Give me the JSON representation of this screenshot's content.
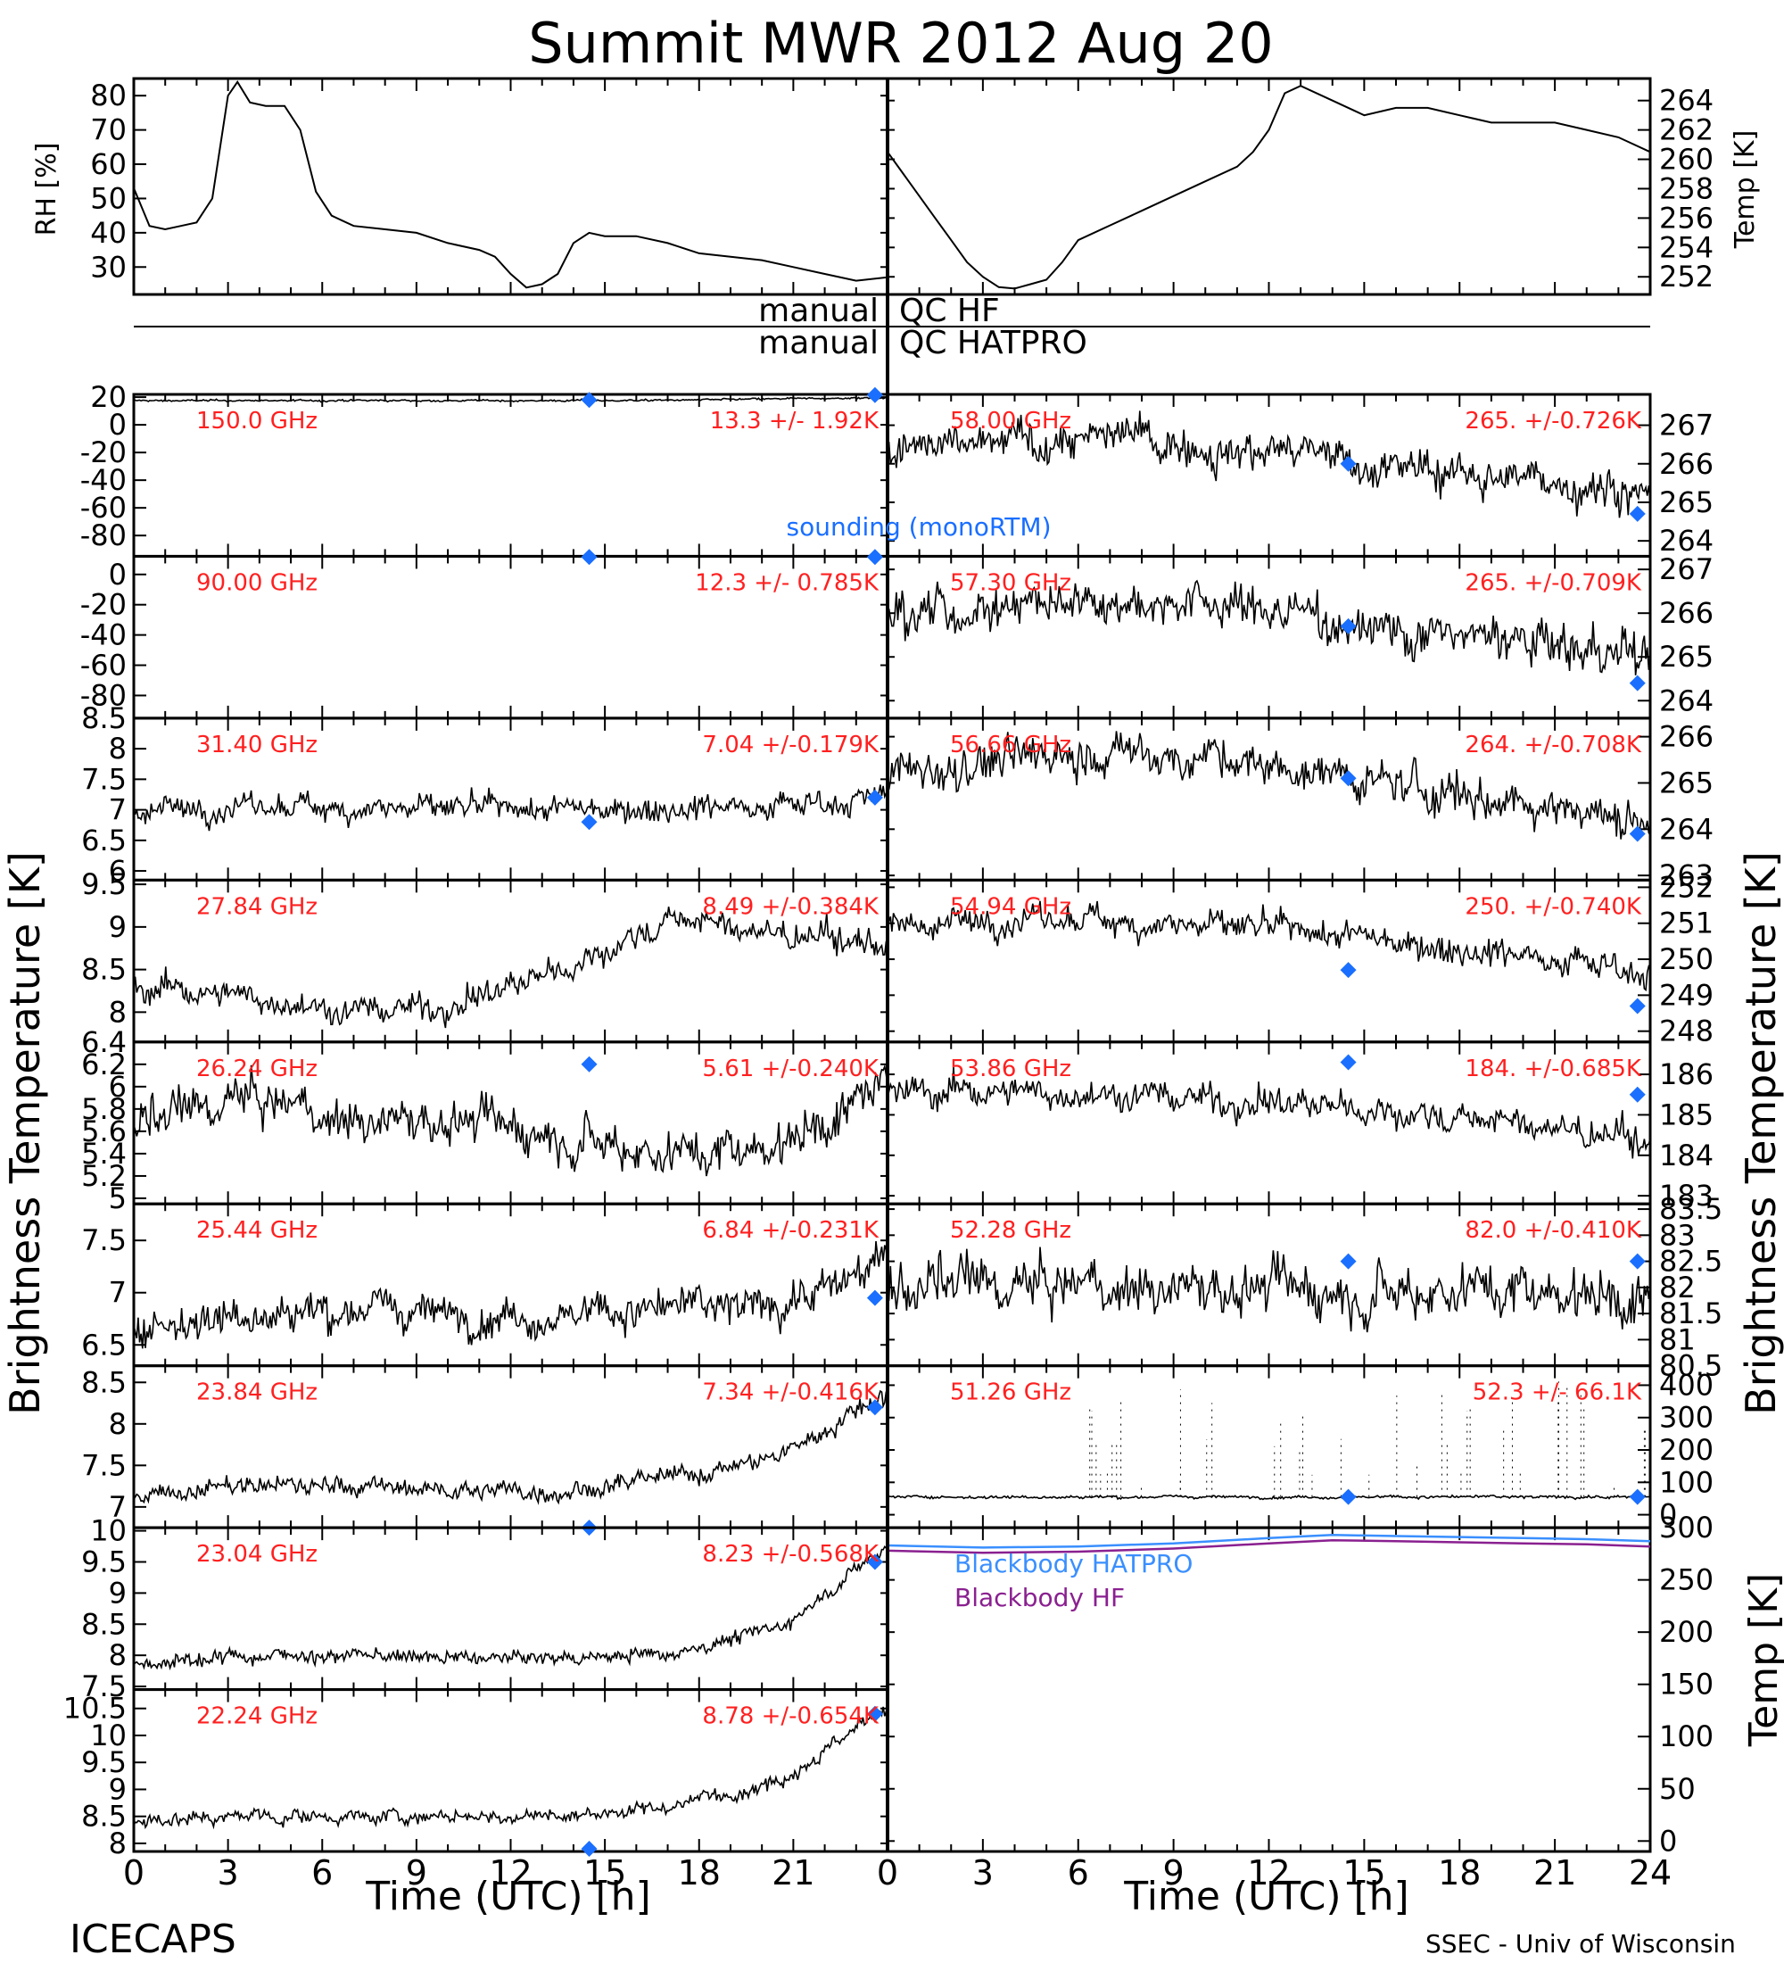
{
  "title": "Summit MWR 2012 Aug 20",
  "footer": {
    "left": "ICECAPS",
    "right": "SSEC - Univ of Wisconsin",
    "xlabel_left": "Time (UTC) [h]",
    "xlabel_right": "Time (UTC) [h]"
  },
  "ylabel_left": "Brightness Temperature [K]",
  "ylabel_right": "Brightness Temperature [K]",
  "qc": {
    "top_left": "manual",
    "top_right": "QC HF",
    "bottom_left": "manual",
    "bottom_right": "QC HATPRO"
  },
  "colors": {
    "sounding": "#1a6fff",
    "stats": "#ff2020",
    "hatpro_bb": "#3a8fff",
    "hf_bb": "#8a2090",
    "trace": "#000000"
  },
  "legend": {
    "sounding": "sounding (monoRTM)",
    "bb_hatpro": "Blackbody HATPRO",
    "bb_hf": "Blackbody HF"
  },
  "chart_data": [
    {
      "type": "line",
      "id": "rh",
      "ylabel": "RH [%]",
      "x_ticks": [
        0,
        3,
        6,
        9,
        12,
        15,
        18,
        21
      ],
      "xlim": [
        0,
        24
      ],
      "ylim": [
        22,
        85
      ],
      "y_ticks": [
        30,
        40,
        50,
        60,
        70,
        80
      ],
      "x": [
        0,
        0.5,
        1,
        1.5,
        2,
        2.5,
        3,
        3.3,
        3.7,
        4.2,
        4.8,
        5.3,
        5.8,
        6.3,
        7,
        8,
        9,
        10,
        11,
        11.5,
        12,
        12.5,
        13,
        13.5,
        14,
        14.5,
        15,
        16,
        17,
        18,
        19,
        20,
        21,
        22,
        23,
        24
      ],
      "y": [
        53,
        42,
        41,
        42,
        43,
        50,
        80,
        84,
        78,
        77,
        77,
        70,
        52,
        45,
        42,
        41,
        40,
        37,
        35,
        33,
        28,
        24,
        25,
        28,
        37,
        40,
        39,
        39,
        37,
        34,
        33,
        32,
        30,
        28,
        26,
        27
      ]
    },
    {
      "type": "line",
      "id": "temp",
      "ylabel": "Temp [K]",
      "xlim": [
        0,
        24
      ],
      "ylim": [
        250.8,
        265.5
      ],
      "y_ticks": [
        252,
        254,
        256,
        258,
        260,
        262,
        264
      ],
      "x": [
        0,
        0.5,
        1,
        1.5,
        2,
        2.5,
        3,
        3.5,
        4,
        4.5,
        5,
        5.5,
        6,
        7,
        8,
        9,
        10,
        11,
        11.5,
        12,
        12.5,
        13,
        14,
        15,
        16,
        17,
        18,
        19,
        20,
        21,
        22,
        23,
        24
      ],
      "y": [
        260.5,
        259,
        257.5,
        256,
        254.5,
        253,
        252,
        251.3,
        251.2,
        251.5,
        251.8,
        253,
        254.5,
        255.5,
        256.5,
        257.5,
        258.5,
        259.5,
        260.5,
        262,
        264.5,
        265,
        264,
        263,
        263.5,
        263.5,
        263,
        262.5,
        262.5,
        262.5,
        262,
        261.5,
        260.5
      ]
    },
    {
      "type": "scatter",
      "id": "l1",
      "freq": "150.0 GHz",
      "stat": "13.3 +/-  1.92K",
      "ylim": [
        -95,
        22
      ],
      "y_ticks": [
        20,
        0,
        -20,
        -40,
        -60,
        -80
      ],
      "base": 17.5,
      "trend": [
        0,
        0,
        0,
        0,
        0,
        0.3,
        1.2,
        2
      ],
      "noise": 0.6,
      "sounding": [
        [
          14.5,
          18
        ],
        [
          23.6,
          21.5
        ]
      ]
    },
    {
      "type": "scatter",
      "id": "l2",
      "freq": "90.00 GHz",
      "stat": "12.3 +/- 0.785K",
      "ylim": [
        -95,
        12
      ],
      "y_ticks": [
        0,
        -20,
        -40,
        -60,
        -80
      ],
      "base": 12,
      "trend": [
        0,
        0,
        0,
        0,
        0,
        0,
        0,
        0
      ],
      "noise": 0.3,
      "sounding": [
        [
          14.5,
          11.5
        ],
        [
          23.6,
          11.5
        ]
      ]
    },
    {
      "type": "scatter",
      "id": "l3",
      "freq": "31.40 GHz",
      "stat": "7.04 +/-0.179K",
      "ylim": [
        5.85,
        8.5
      ],
      "y_ticks": [
        8.5,
        8.0,
        7.5,
        7.0,
        6.5,
        6.0
      ],
      "base": 7.0,
      "trend": [
        0,
        0.05,
        0.05,
        0,
        0,
        0.05,
        0.1,
        0.2
      ],
      "noise": 0.18,
      "sounding": [
        [
          14.5,
          6.8
        ],
        [
          23.6,
          7.2
        ]
      ]
    },
    {
      "type": "scatter",
      "id": "l4",
      "freq": "27.84 GHz",
      "stat": "8.49 +/-0.384K",
      "ylim": [
        7.65,
        9.55
      ],
      "y_ticks": [
        9.5,
        9.0,
        8.5,
        8.0
      ],
      "base": 8.2,
      "trend": [
        0.1,
        0,
        -0.2,
        -0.1,
        0.3,
        0.9,
        0.7,
        0.6
      ],
      "noise": 0.15,
      "sounding": []
    },
    {
      "type": "scatter",
      "id": "l5",
      "freq": "26.24 GHz",
      "stat": "5.61 +/-0.240K",
      "ylim": [
        4.95,
        6.4
      ],
      "y_ticks": [
        6.4,
        6.2,
        6.0,
        5.8,
        5.6,
        5.4,
        5.2,
        5.0
      ],
      "base": 5.6,
      "trend": [
        0,
        0.3,
        0.1,
        0.1,
        0,
        -0.2,
        -0.1,
        0.4
      ],
      "noise": 0.18,
      "sounding": [
        [
          14.5,
          6.2
        ]
      ]
    },
    {
      "type": "scatter",
      "id": "l6",
      "freq": "25.44 GHz",
      "stat": "6.84 +/-0.231K",
      "ylim": [
        6.3,
        7.85
      ],
      "y_ticks": [
        7.5,
        7.0,
        6.5
      ],
      "base": 6.8,
      "trend": [
        -0.1,
        0,
        0.05,
        0,
        0,
        0.05,
        0.1,
        0.5
      ],
      "noise": 0.16,
      "sounding": [
        [
          23.6,
          6.95
        ]
      ]
    },
    {
      "type": "scatter",
      "id": "l7",
      "freq": "23.84 GHz",
      "stat": "7.34 +/-0.416K",
      "ylim": [
        6.75,
        8.7
      ],
      "y_ticks": [
        8.5,
        8.0,
        7.5,
        7.0
      ],
      "base": 7.2,
      "trend": [
        -0.05,
        0.05,
        0.05,
        0,
        0,
        0.15,
        0.4,
        1.2
      ],
      "noise": 0.1,
      "sounding": [
        [
          14.5,
          6.75
        ],
        [
          23.6,
          8.2
        ]
      ]
    },
    {
      "type": "scatter",
      "id": "l8",
      "freq": "23.04 GHz",
      "stat": "8.23 +/-0.568K",
      "ylim": [
        7.45,
        10.05
      ],
      "y_ticks": [
        10.0,
        9.5,
        9.0,
        8.5,
        8.0,
        7.5
      ],
      "base": 7.95,
      "trend": [
        -0.1,
        0.05,
        0.05,
        0,
        0,
        0.1,
        0.5,
        1.8
      ],
      "noise": 0.1,
      "sounding": [
        [
          23.6,
          9.5
        ]
      ]
    },
    {
      "type": "scatter",
      "id": "l9",
      "freq": "22.24 GHz",
      "stat": "8.78 +/-0.654K",
      "ylim": [
        7.85,
        10.85
      ],
      "y_ticks": [
        10.5,
        10.0,
        9.5,
        9.0,
        8.5,
        8.0
      ],
      "base": 8.5,
      "trend": [
        -0.1,
        0,
        0,
        0,
        0,
        0.2,
        0.7,
        2.0
      ],
      "noise": 0.12,
      "sounding": [
        [
          14.5,
          7.9
        ],
        [
          23.6,
          10.4
        ]
      ]
    },
    {
      "type": "scatter",
      "id": "r1",
      "freq": "58.00 GHz",
      "stat": "265. +/-0.726K",
      "ylim": [
        263.6,
        267.8
      ],
      "y_ticks": [
        267,
        266,
        265,
        264
      ],
      "base": 266.2,
      "trend": [
        0,
        0.3,
        0.5,
        0.3,
        0,
        -0.4,
        -0.6,
        -0.9
      ],
      "noise": 0.45,
      "sounding": [
        [
          14.5,
          266.0
        ],
        [
          23.6,
          264.7
        ]
      ]
    },
    {
      "type": "scatter",
      "id": "r2",
      "freq": "57.30 GHz",
      "stat": "265. +/-0.709K",
      "ylim": [
        263.6,
        267.3
      ],
      "y_ticks": [
        267,
        266,
        265,
        264
      ],
      "base": 265.9,
      "trend": [
        0,
        0.3,
        0.5,
        0.3,
        0,
        -0.4,
        -0.6,
        -1.0
      ],
      "noise": 0.45,
      "sounding": [
        [
          14.5,
          265.7
        ],
        [
          23.6,
          264.4
        ]
      ]
    },
    {
      "type": "scatter",
      "id": "r3",
      "freq": "56.66 GHz",
      "stat": "264. +/-0.708K",
      "ylim": [
        262.9,
        266.4
      ],
      "y_ticks": [
        266,
        265,
        264,
        263
      ],
      "base": 265.2,
      "trend": [
        0,
        0.3,
        0.5,
        0.3,
        0,
        -0.4,
        -0.6,
        -1.0
      ],
      "noise": 0.4,
      "sounding": [
        [
          14.5,
          265.1
        ],
        [
          23.6,
          263.9
        ]
      ]
    },
    {
      "type": "scatter",
      "id": "r4",
      "freq": "54.94 GHz",
      "stat": "250. +/-0.740K",
      "ylim": [
        247.7,
        252.2
      ],
      "y_ticks": [
        252,
        251,
        250,
        249,
        248
      ],
      "base": 250.9,
      "trend": [
        0,
        0.2,
        0.2,
        0,
        -0.2,
        -0.5,
        -0.8,
        -1.2
      ],
      "noise": 0.35,
      "sounding": [
        [
          14.5,
          249.7
        ],
        [
          23.6,
          248.7
        ]
      ]
    },
    {
      "type": "scatter",
      "id": "r5",
      "freq": "53.86 GHz",
      "stat": "184. +/-0.685K",
      "ylim": [
        182.8,
        186.8
      ],
      "y_ticks": [
        186,
        185,
        184,
        183
      ],
      "base": 185.5,
      "trend": [
        0,
        0.1,
        0,
        -0.1,
        -0.3,
        -0.5,
        -0.8,
        -1.2
      ],
      "noise": 0.35,
      "sounding": [
        [
          14.5,
          186.3
        ],
        [
          23.6,
          185.5
        ]
      ]
    },
    {
      "type": "scatter",
      "id": "r6",
      "freq": "52.28 GHz",
      "stat": "82.0 +/-0.410K",
      "ylim": [
        80.5,
        83.6
      ],
      "y_ticks": [
        83.5,
        83.0,
        82.5,
        82.0,
        81.5,
        81.0,
        80.5
      ],
      "base": 82.0,
      "trend": [
        0,
        0,
        0,
        0,
        0,
        0,
        0,
        -0.2
      ],
      "noise": 0.45,
      "sounding": [
        [
          14.5,
          82.5
        ],
        [
          23.6,
          82.5
        ]
      ]
    },
    {
      "type": "scatter",
      "id": "r7",
      "freq": "51.26 GHz",
      "stat": "52.3 +/-  66.1K",
      "ylim": [
        -40,
        460
      ],
      "y_ticks": [
        400,
        300,
        200,
        100,
        0
      ],
      "base": 55,
      "trend": [
        0,
        0,
        0,
        0,
        0,
        0,
        0,
        0
      ],
      "noise": 4,
      "spikes": true,
      "sounding": [
        [
          14.5,
          55
        ],
        [
          23.6,
          55
        ]
      ]
    },
    {
      "type": "line",
      "id": "bb",
      "ylabel": "Temp [K]",
      "x_ticks": [
        0,
        3,
        6,
        9,
        12,
        15,
        18,
        21,
        24
      ],
      "xlim": [
        0,
        24
      ],
      "ylim": [
        -10,
        300
      ],
      "y_ticks": [
        300,
        250,
        200,
        150,
        100,
        50,
        0
      ],
      "series": [
        {
          "name": "Blackbody HATPRO",
          "x": [
            0,
            3,
            6,
            9,
            12,
            14,
            16,
            18,
            20,
            22,
            24
          ],
          "y": [
            283,
            281,
            282,
            285,
            290,
            293,
            292,
            291,
            290,
            289,
            287
          ]
        },
        {
          "name": "Blackbody HF",
          "x": [
            0,
            3,
            6,
            9,
            12,
            14,
            16,
            18,
            20,
            22,
            24
          ],
          "y": [
            278,
            276,
            277,
            280,
            285,
            288,
            287,
            286,
            285,
            284,
            282
          ]
        }
      ]
    }
  ]
}
